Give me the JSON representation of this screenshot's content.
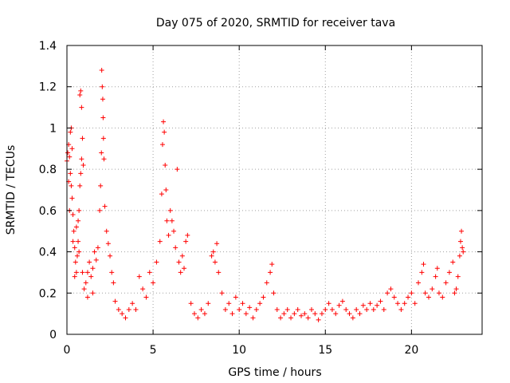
{
  "chart_data": {
    "type": "scatter",
    "title": "Day 075 of 2020, SRMTID for receiver tava",
    "xlabel": "GPS time / hours",
    "ylabel": "SRMTID / TECUs",
    "xlim": [
      0,
      24.1
    ],
    "ylim": [
      0,
      1.4
    ],
    "xticks": [
      0,
      5,
      10,
      15,
      20
    ],
    "xtick_labels": [
      "0",
      "5",
      "10",
      "15",
      "20"
    ],
    "yticks": [
      0,
      0.2,
      0.4,
      0.6,
      0.8,
      1,
      1.2,
      1.4
    ],
    "ytick_labels": [
      "0",
      "0.2",
      "0.4",
      "0.6",
      "0.8",
      "1",
      "1.2",
      "1.4"
    ],
    "grid": true,
    "marker": "+",
    "color": "#ff0000",
    "series": [
      {
        "name": "tava",
        "points": [
          [
            0.0,
            0.84
          ],
          [
            0.05,
            0.88
          ],
          [
            0.1,
            0.92
          ],
          [
            0.15,
            0.86
          ],
          [
            0.2,
            0.78
          ],
          [
            0.25,
            0.72
          ],
          [
            0.3,
            0.66
          ],
          [
            0.35,
            0.58
          ],
          [
            0.4,
            0.5
          ],
          [
            0.45,
            0.42
          ],
          [
            0.5,
            0.35
          ],
          [
            0.55,
            0.3
          ],
          [
            0.6,
            0.38
          ],
          [
            0.65,
            0.55
          ],
          [
            0.7,
            0.6
          ],
          [
            0.75,
            0.72
          ],
          [
            0.8,
            0.78
          ],
          [
            0.85,
            0.85
          ],
          [
            0.1,
            0.74
          ],
          [
            0.2,
            0.98
          ],
          [
            0.25,
            1.0
          ],
          [
            0.3,
            0.9
          ],
          [
            0.15,
            0.6
          ],
          [
            0.35,
            0.45
          ],
          [
            0.45,
            0.28
          ],
          [
            0.55,
            0.52
          ],
          [
            0.65,
            0.45
          ],
          [
            0.7,
            0.4
          ],
          [
            0.75,
            1.16
          ],
          [
            0.8,
            1.18
          ],
          [
            0.85,
            1.1
          ],
          [
            0.9,
            0.95
          ],
          [
            0.95,
            0.82
          ],
          [
            0.9,
            0.3
          ],
          [
            1.0,
            0.22
          ],
          [
            1.1,
            0.25
          ],
          [
            1.2,
            0.3
          ],
          [
            1.3,
            0.35
          ],
          [
            1.4,
            0.28
          ],
          [
            1.5,
            0.32
          ],
          [
            1.6,
            0.4
          ],
          [
            1.7,
            0.36
          ],
          [
            1.8,
            0.42
          ],
          [
            1.9,
            0.6
          ],
          [
            1.95,
            0.72
          ],
          [
            2.0,
            0.88
          ],
          [
            2.02,
            1.28
          ],
          [
            2.05,
            1.2
          ],
          [
            2.08,
            1.14
          ],
          [
            2.1,
            1.05
          ],
          [
            2.12,
            0.95
          ],
          [
            2.15,
            0.85
          ],
          [
            2.2,
            0.62
          ],
          [
            2.3,
            0.5
          ],
          [
            2.4,
            0.44
          ],
          [
            2.5,
            0.38
          ],
          [
            2.6,
            0.3
          ],
          [
            2.7,
            0.25
          ],
          [
            1.2,
            0.18
          ],
          [
            1.5,
            0.2
          ],
          [
            2.8,
            0.16
          ],
          [
            3.0,
            0.12
          ],
          [
            3.2,
            0.1
          ],
          [
            3.4,
            0.08
          ],
          [
            3.6,
            0.12
          ],
          [
            3.8,
            0.15
          ],
          [
            4.0,
            0.12
          ],
          [
            4.2,
            0.28
          ],
          [
            4.4,
            0.22
          ],
          [
            4.6,
            0.18
          ],
          [
            4.8,
            0.3
          ],
          [
            5.0,
            0.25
          ],
          [
            5.2,
            0.35
          ],
          [
            5.4,
            0.45
          ],
          [
            5.5,
            0.68
          ],
          [
            5.55,
            0.92
          ],
          [
            5.6,
            1.03
          ],
          [
            5.65,
            0.98
          ],
          [
            5.7,
            0.82
          ],
          [
            5.75,
            0.7
          ],
          [
            5.8,
            0.55
          ],
          [
            5.9,
            0.48
          ],
          [
            6.0,
            0.6
          ],
          [
            6.1,
            0.55
          ],
          [
            6.2,
            0.5
          ],
          [
            6.3,
            0.42
          ],
          [
            6.4,
            0.8
          ],
          [
            6.5,
            0.35
          ],
          [
            6.6,
            0.3
          ],
          [
            6.7,
            0.38
          ],
          [
            6.8,
            0.32
          ],
          [
            6.9,
            0.45
          ],
          [
            7.0,
            0.48
          ],
          [
            7.2,
            0.15
          ],
          [
            7.4,
            0.1
          ],
          [
            7.6,
            0.08
          ],
          [
            7.8,
            0.12
          ],
          [
            8.0,
            0.1
          ],
          [
            8.2,
            0.15
          ],
          [
            8.4,
            0.38
          ],
          [
            8.5,
            0.4
          ],
          [
            8.6,
            0.35
          ],
          [
            8.7,
            0.44
          ],
          [
            8.8,
            0.3
          ],
          [
            9.0,
            0.2
          ],
          [
            9.2,
            0.12
          ],
          [
            9.4,
            0.15
          ],
          [
            9.6,
            0.1
          ],
          [
            9.8,
            0.18
          ],
          [
            10.0,
            0.12
          ],
          [
            10.2,
            0.15
          ],
          [
            10.4,
            0.1
          ],
          [
            10.6,
            0.13
          ],
          [
            10.8,
            0.08
          ],
          [
            11.0,
            0.12
          ],
          [
            11.2,
            0.15
          ],
          [
            11.4,
            0.18
          ],
          [
            11.6,
            0.25
          ],
          [
            11.8,
            0.3
          ],
          [
            11.9,
            0.34
          ],
          [
            12.0,
            0.2
          ],
          [
            12.2,
            0.12
          ],
          [
            12.4,
            0.08
          ],
          [
            12.6,
            0.1
          ],
          [
            12.8,
            0.12
          ],
          [
            13.0,
            0.08
          ],
          [
            13.2,
            0.1
          ],
          [
            13.4,
            0.12
          ],
          [
            13.6,
            0.09
          ],
          [
            13.8,
            0.1
          ],
          [
            14.0,
            0.08
          ],
          [
            14.2,
            0.12
          ],
          [
            14.4,
            0.1
          ],
          [
            14.6,
            0.07
          ],
          [
            14.8,
            0.1
          ],
          [
            15.0,
            0.12
          ],
          [
            15.2,
            0.15
          ],
          [
            15.4,
            0.12
          ],
          [
            15.6,
            0.1
          ],
          [
            15.8,
            0.14
          ],
          [
            16.0,
            0.16
          ],
          [
            16.2,
            0.12
          ],
          [
            16.4,
            0.1
          ],
          [
            16.6,
            0.08
          ],
          [
            16.8,
            0.12
          ],
          [
            17.0,
            0.1
          ],
          [
            17.2,
            0.14
          ],
          [
            17.4,
            0.12
          ],
          [
            17.6,
            0.15
          ],
          [
            17.8,
            0.12
          ],
          [
            18.0,
            0.14
          ],
          [
            18.2,
            0.16
          ],
          [
            18.4,
            0.12
          ],
          [
            18.6,
            0.2
          ],
          [
            18.8,
            0.22
          ],
          [
            19.0,
            0.18
          ],
          [
            19.2,
            0.15
          ],
          [
            19.4,
            0.12
          ],
          [
            19.6,
            0.15
          ],
          [
            19.8,
            0.18
          ],
          [
            20.0,
            0.2
          ],
          [
            20.2,
            0.15
          ],
          [
            20.4,
            0.25
          ],
          [
            20.6,
            0.3
          ],
          [
            20.7,
            0.34
          ],
          [
            20.8,
            0.2
          ],
          [
            21.0,
            0.18
          ],
          [
            21.2,
            0.22
          ],
          [
            21.4,
            0.28
          ],
          [
            21.5,
            0.32
          ],
          [
            21.6,
            0.2
          ],
          [
            21.8,
            0.18
          ],
          [
            22.0,
            0.25
          ],
          [
            22.2,
            0.3
          ],
          [
            22.4,
            0.35
          ],
          [
            22.5,
            0.2
          ],
          [
            22.6,
            0.22
          ],
          [
            22.7,
            0.28
          ],
          [
            22.8,
            0.38
          ],
          [
            22.85,
            0.45
          ],
          [
            22.9,
            0.5
          ],
          [
            22.95,
            0.42
          ],
          [
            23.0,
            0.4
          ]
        ]
      }
    ]
  }
}
